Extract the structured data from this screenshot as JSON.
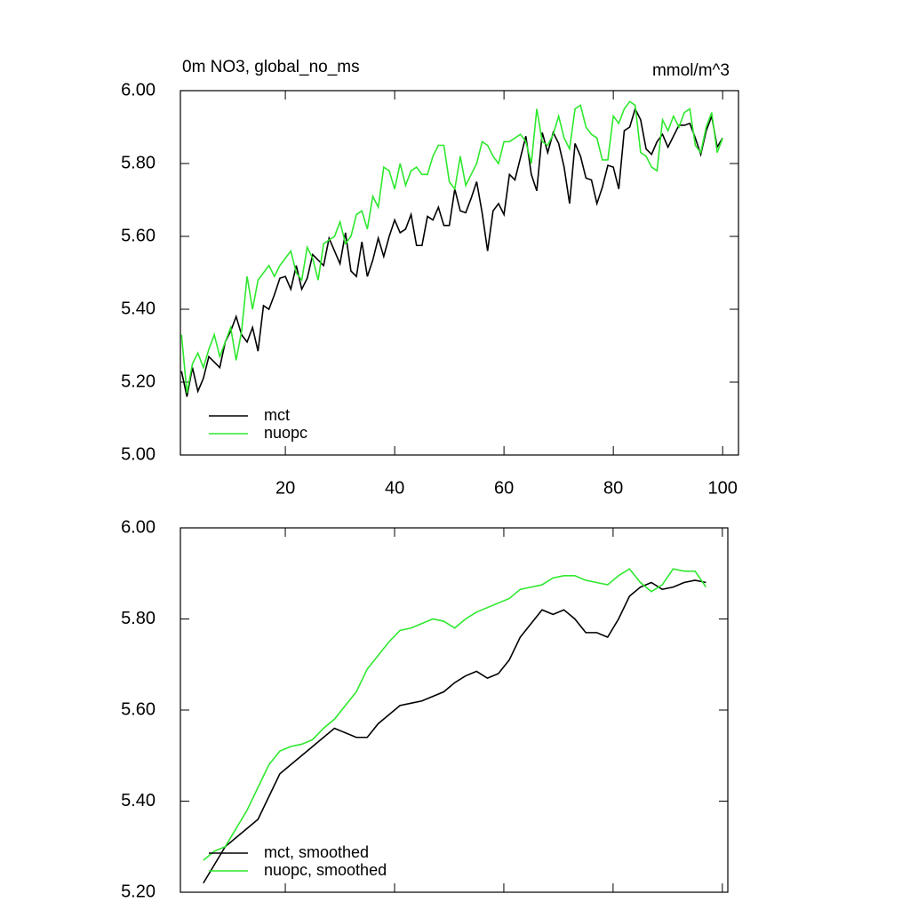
{
  "chart_data": [
    {
      "type": "line",
      "title": "0m NO3, global_no_ms",
      "units": "mmol/m^3",
      "x": [
        1,
        2,
        3,
        4,
        5,
        6,
        7,
        8,
        9,
        10,
        11,
        12,
        13,
        14,
        15,
        16,
        17,
        18,
        19,
        20,
        21,
        22,
        23,
        24,
        25,
        26,
        27,
        28,
        29,
        30,
        31,
        32,
        33,
        34,
        35,
        36,
        37,
        38,
        39,
        40,
        41,
        42,
        43,
        44,
        45,
        46,
        47,
        48,
        49,
        50,
        51,
        52,
        53,
        54,
        55,
        56,
        57,
        58,
        59,
        60,
        61,
        62,
        63,
        64,
        65,
        66,
        67,
        68,
        69,
        70,
        71,
        72,
        73,
        74,
        75,
        76,
        77,
        78,
        79,
        80,
        81,
        82,
        83,
        84,
        85,
        86,
        87,
        88,
        89,
        90,
        91,
        92,
        93,
        94,
        95,
        96,
        97,
        98,
        99,
        100
      ],
      "series": [
        {
          "name": "mct",
          "color": "#000000",
          "values": [
            5.23,
            5.16,
            5.24,
            5.175,
            5.21,
            5.27,
            5.255,
            5.24,
            5.31,
            5.34,
            5.38,
            5.33,
            5.31,
            5.35,
            5.285,
            5.41,
            5.4,
            5.44,
            5.485,
            5.49,
            5.455,
            5.52,
            5.455,
            5.485,
            5.55,
            5.535,
            5.52,
            5.595,
            5.56,
            5.525,
            5.61,
            5.505,
            5.49,
            5.585,
            5.49,
            5.535,
            5.595,
            5.545,
            5.6,
            5.645,
            5.61,
            5.62,
            5.66,
            5.575,
            5.575,
            5.655,
            5.645,
            5.68,
            5.63,
            5.63,
            5.73,
            5.67,
            5.665,
            5.705,
            5.75,
            5.665,
            5.56,
            5.67,
            5.69,
            5.66,
            5.77,
            5.755,
            5.815,
            5.875,
            5.77,
            5.725,
            5.885,
            5.83,
            5.885,
            5.855,
            5.79,
            5.69,
            5.855,
            5.82,
            5.76,
            5.755,
            5.69,
            5.735,
            5.795,
            5.79,
            5.73,
            5.89,
            5.9,
            5.95,
            5.92,
            5.84,
            5.825,
            5.86,
            5.88,
            5.845,
            5.875,
            5.905,
            5.905,
            5.91,
            5.87,
            5.825,
            5.89,
            5.93,
            5.845,
            5.87
          ]
        },
        {
          "name": "nuopc",
          "color": "#2ee82e",
          "values": [
            5.33,
            5.17,
            5.25,
            5.28,
            5.24,
            5.29,
            5.33,
            5.27,
            5.31,
            5.35,
            5.26,
            5.34,
            5.49,
            5.4,
            5.48,
            5.5,
            5.52,
            5.49,
            5.52,
            5.54,
            5.56,
            5.5,
            5.48,
            5.57,
            5.54,
            5.48,
            5.58,
            5.59,
            5.6,
            5.64,
            5.58,
            5.6,
            5.66,
            5.67,
            5.62,
            5.71,
            5.68,
            5.79,
            5.78,
            5.73,
            5.8,
            5.74,
            5.78,
            5.79,
            5.77,
            5.77,
            5.82,
            5.85,
            5.85,
            5.75,
            5.73,
            5.82,
            5.74,
            5.77,
            5.8,
            5.86,
            5.85,
            5.82,
            5.8,
            5.86,
            5.86,
            5.87,
            5.88,
            5.86,
            5.8,
            5.95,
            5.86,
            5.85,
            5.88,
            5.93,
            5.87,
            5.84,
            5.95,
            5.96,
            5.9,
            5.88,
            5.87,
            5.81,
            5.81,
            5.93,
            5.91,
            5.95,
            5.97,
            5.96,
            5.83,
            5.82,
            5.79,
            5.78,
            5.92,
            5.89,
            5.93,
            5.9,
            5.94,
            5.95,
            5.85,
            5.83,
            5.9,
            5.94,
            5.83,
            5.87
          ]
        }
      ],
      "xlim": [
        0.8,
        102.9
      ],
      "ylim": [
        5,
        6
      ],
      "xticks": [
        20,
        40,
        60,
        80,
        100
      ],
      "yticks": [
        {
          "value": 5,
          "label": "5.00"
        },
        {
          "value": 5.2,
          "label": "5.20"
        },
        {
          "value": 5.4,
          "label": "5.40"
        },
        {
          "value": 5.6,
          "label": "5.60"
        },
        {
          "value": 5.8,
          "label": "5.80"
        },
        {
          "value": 6,
          "label": "6.00"
        }
      ],
      "legend": "lower left",
      "xtick_labels": true
    },
    {
      "type": "line",
      "x": [
        5,
        7,
        9,
        11,
        13,
        15,
        17,
        19,
        21,
        23,
        25,
        27,
        29,
        31,
        33,
        35,
        37,
        39,
        41,
        43,
        45,
        47,
        49,
        51,
        53,
        55,
        57,
        59,
        61,
        63,
        65,
        67,
        69,
        71,
        73,
        75,
        77,
        79,
        81,
        83,
        85,
        87,
        89,
        91,
        93,
        95,
        97
      ],
      "series": [
        {
          "name": "mct, smoothed",
          "color": "#000000",
          "values": [
            5.22,
            5.26,
            5.3,
            5.32,
            5.34,
            5.36,
            5.41,
            5.46,
            5.48,
            5.5,
            5.52,
            5.54,
            5.56,
            5.55,
            5.54,
            5.54,
            5.57,
            5.59,
            5.61,
            5.615,
            5.62,
            5.63,
            5.64,
            5.66,
            5.675,
            5.685,
            5.67,
            5.68,
            5.71,
            5.76,
            5.79,
            5.82,
            5.81,
            5.82,
            5.8,
            5.77,
            5.77,
            5.76,
            5.8,
            5.85,
            5.87,
            5.88,
            5.865,
            5.87,
            5.88,
            5.885,
            5.88
          ]
        },
        {
          "name": "nuopc, smoothed",
          "color": "#2ee82e",
          "values": [
            5.27,
            5.29,
            5.3,
            5.34,
            5.38,
            5.43,
            5.48,
            5.51,
            5.52,
            5.525,
            5.535,
            5.56,
            5.58,
            5.61,
            5.64,
            5.69,
            5.72,
            5.75,
            5.775,
            5.78,
            5.79,
            5.8,
            5.795,
            5.78,
            5.8,
            5.815,
            5.825,
            5.835,
            5.845,
            5.865,
            5.87,
            5.875,
            5.89,
            5.895,
            5.895,
            5.885,
            5.88,
            5.875,
            5.895,
            5.91,
            5.88,
            5.86,
            5.875,
            5.91,
            5.905,
            5.905,
            5.87
          ]
        }
      ],
      "xlim": [
        0.8,
        101
      ],
      "ylim": [
        5.2,
        6
      ],
      "xticks": [
        20,
        40,
        60,
        80,
        100
      ],
      "yticks": [
        {
          "value": 5.2,
          "label": "5.20"
        },
        {
          "value": 5.4,
          "label": "5.40"
        },
        {
          "value": 5.6,
          "label": "5.60"
        },
        {
          "value": 5.8,
          "label": "5.80"
        },
        {
          "value": 6,
          "label": "6.00"
        }
      ],
      "legend": "lower left",
      "xtick_labels": false
    }
  ]
}
